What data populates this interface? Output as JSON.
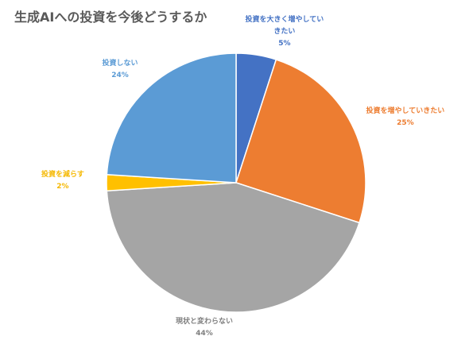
{
  "chart_data": {
    "type": "pie",
    "title": "生成AIへの投資を今後どうするか",
    "slices": [
      {
        "label": "投資を大きく増やしていきたい",
        "label_lines": [
          "投資を大きく増やしてい",
          "きたい"
        ],
        "value": 5,
        "value_text": "5%",
        "color": "#4472c4",
        "label_color": "#4472c4"
      },
      {
        "label": "投資を増やしていきたい",
        "label_lines": [
          "投資を増やしていきたい"
        ],
        "value": 25,
        "value_text": "25%",
        "color": "#ed7d31",
        "label_color": "#ed7d31"
      },
      {
        "label": "現状と変わらない",
        "label_lines": [
          "現状と変わらない"
        ],
        "value": 44,
        "value_text": "44%",
        "color": "#a5a5a5",
        "label_color": "#7f7f7f"
      },
      {
        "label": "投資を減らす",
        "label_lines": [
          "投資を減らす"
        ],
        "value": 2,
        "value_text": "2%",
        "color": "#ffc000",
        "label_color": "#f5b800"
      },
      {
        "label": "投資しない",
        "label_lines": [
          "投資しない"
        ],
        "value": 24,
        "value_text": "24%",
        "color": "#5b9bd5",
        "label_color": "#5b9bd5"
      }
    ]
  }
}
